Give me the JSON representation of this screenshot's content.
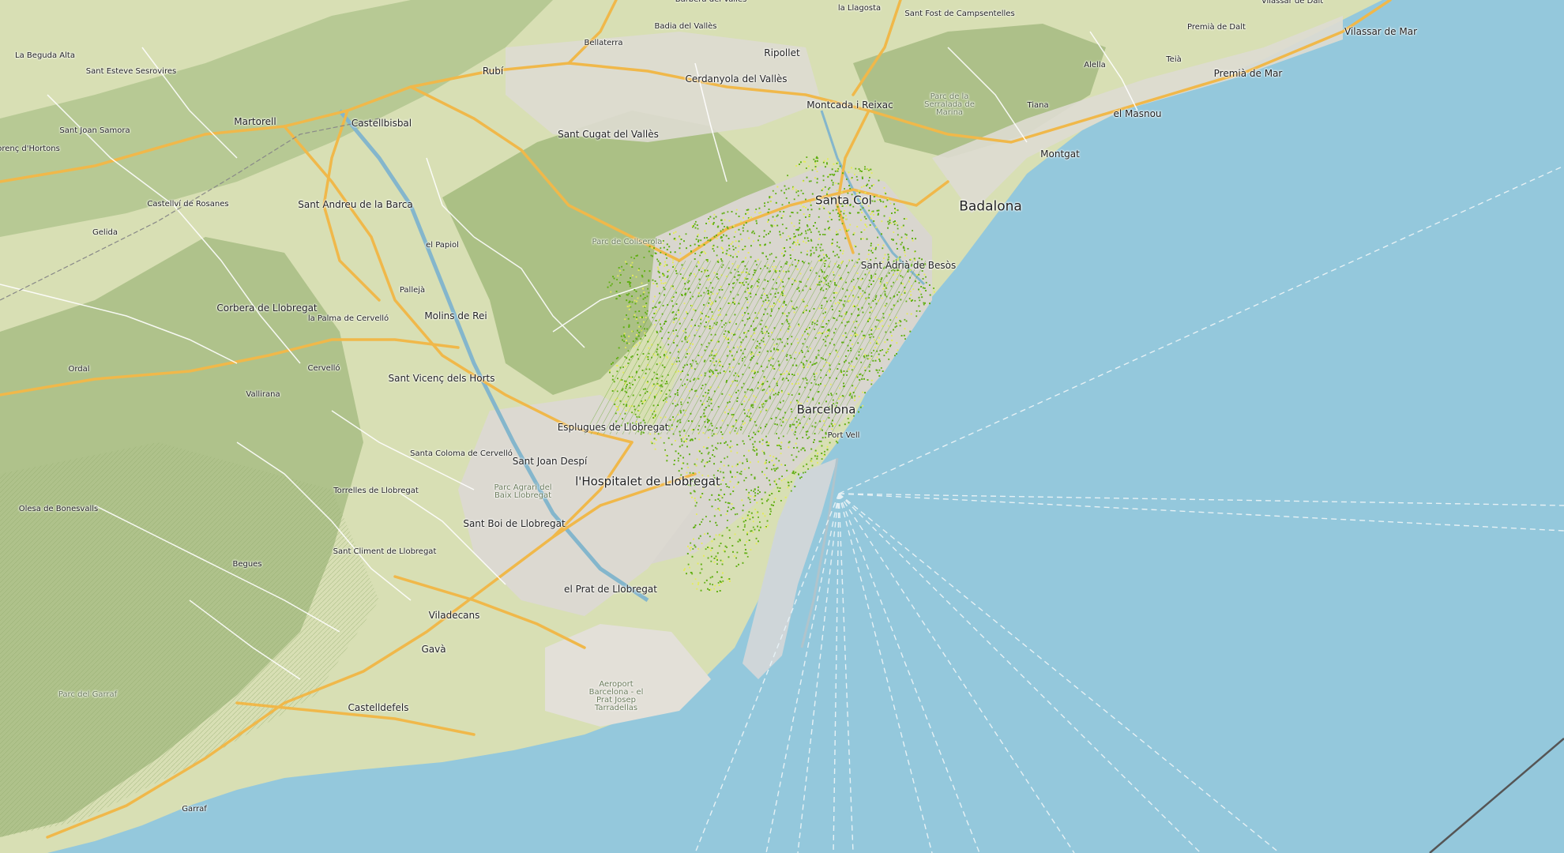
{
  "map": {
    "type": "topographic-transit-overlay",
    "colors": {
      "sea": "#94c8dc",
      "land": "#d8dfb4",
      "forest": "#a9bd84",
      "urban": "#d9d6cf",
      "highway": "#f0b84a",
      "road": "#ffffff",
      "transit_stops": "#5fae12",
      "transit_stops_alt": "#e4ec5a",
      "ferry_lines": "#e6f1f5",
      "coastline": "#5e8fa6"
    }
  },
  "places": [
    {
      "id": "barbera",
      "name": "Barberà del Vallès",
      "size": "s"
    },
    {
      "id": "llagosta",
      "name": "la Llagosta",
      "size": "s"
    },
    {
      "id": "sant-fost",
      "name": "Sant Fost de Campsentelles",
      "size": "s"
    },
    {
      "id": "vilassar-dalt",
      "name": "Vilassar de Dalt",
      "size": "s"
    },
    {
      "id": "badia",
      "name": "Badia del Vallès",
      "size": "s"
    },
    {
      "id": "premia-dalt",
      "name": "Premià de Dalt",
      "size": "s"
    },
    {
      "id": "vilassar-mar",
      "name": "Vilassar de Mar",
      "size": "m"
    },
    {
      "id": "beguda",
      "name": "La Beguda Alta",
      "size": "s"
    },
    {
      "id": "bellaterra",
      "name": "Bellaterra",
      "size": "s"
    },
    {
      "id": "ripollet",
      "name": "Ripollet",
      "size": "m"
    },
    {
      "id": "alella",
      "name": "Alella",
      "size": "s"
    },
    {
      "id": "teia",
      "name": "Teià",
      "size": "s"
    },
    {
      "id": "premia-mar",
      "name": "Premià de Mar",
      "size": "m"
    },
    {
      "id": "sant-esteve",
      "name": "Sant Esteve Sesrovires",
      "size": "s"
    },
    {
      "id": "rubi",
      "name": "Rubí",
      "size": "m"
    },
    {
      "id": "cerdanyola",
      "name": "Cerdanyola del Vallès",
      "size": "m"
    },
    {
      "id": "montcada",
      "name": "Montcada i Reixac",
      "size": "m"
    },
    {
      "id": "serralada",
      "name": "Parc de la Serralada de Marina",
      "size": "park"
    },
    {
      "id": "tiana",
      "name": "Tiana",
      "size": "s"
    },
    {
      "id": "masnou",
      "name": "el Masnou",
      "size": "m"
    },
    {
      "id": "martorell",
      "name": "Martorell",
      "size": "m"
    },
    {
      "id": "castellbisbal",
      "name": "Castellbisbal",
      "size": "m"
    },
    {
      "id": "sant-joan-samora",
      "name": "Sant Joan Samora",
      "size": "s"
    },
    {
      "id": "sant-cugat",
      "name": "Sant Cugat del Vallès",
      "size": "m"
    },
    {
      "id": "horts",
      "name": "orenç d'Hortons",
      "size": "s"
    },
    {
      "id": "montgat",
      "name": "Montgat",
      "size": "m"
    },
    {
      "id": "castellvi",
      "name": "Castellví de Rosanes",
      "size": "s"
    },
    {
      "id": "sant-andreu",
      "name": "Sant Andreu de la Barca",
      "size": "m"
    },
    {
      "id": "santa-coloma",
      "name": "Santa Col",
      "size": "l"
    },
    {
      "id": "badalona",
      "name": "Badalona",
      "size": "xl"
    },
    {
      "id": "gelida",
      "name": "Gelida",
      "size": "s"
    },
    {
      "id": "collserola",
      "name": "Parc de Collserola",
      "size": "park"
    },
    {
      "id": "papiol",
      "name": "el Papiol",
      "size": "s"
    },
    {
      "id": "sant-adria",
      "name": "Sant Adrià de Besòs",
      "size": "m"
    },
    {
      "id": "pallejà",
      "name": "Pallejà",
      "size": "s"
    },
    {
      "id": "corbera",
      "name": "Corbera de Llobregat",
      "size": "m"
    },
    {
      "id": "palma",
      "name": "la Palma de Cervelló",
      "size": "s"
    },
    {
      "id": "molins",
      "name": "Molins de Rei",
      "size": "m"
    },
    {
      "id": "ordal",
      "name": "Ordal",
      "size": "s"
    },
    {
      "id": "cervello",
      "name": "Cervelló",
      "size": "s"
    },
    {
      "id": "vicenc",
      "name": "Sant Vicenç dels Horts",
      "size": "m"
    },
    {
      "id": "vallirana",
      "name": "Vallirana",
      "size": "s"
    },
    {
      "id": "barcelona",
      "name": "Barcelona",
      "size": "l"
    },
    {
      "id": "esplugues",
      "name": "Esplugues de Llobregat",
      "size": "m"
    },
    {
      "id": "port-vell",
      "name": "Port Vell",
      "size": "s"
    },
    {
      "id": "santa-coloma-cervello",
      "name": "Santa Coloma de Cervelló",
      "size": "s"
    },
    {
      "id": "sant-joan-despi",
      "name": "Sant Joan Despí",
      "size": "m"
    },
    {
      "id": "hospitalet",
      "name": "l'Hospitalet de Llobregat",
      "size": "l"
    },
    {
      "id": "parc-agrari",
      "name": "Parc Agrari del Baix Llobregat",
      "size": "park"
    },
    {
      "id": "torrelles",
      "name": "Torrelles de Llobregat",
      "size": "s"
    },
    {
      "id": "olesa-bonesvalls",
      "name": "Olesa de Bonesvalls",
      "size": "s"
    },
    {
      "id": "sant-boi",
      "name": "Sant Boi de Llobregat",
      "size": "m"
    },
    {
      "id": "sant-climent",
      "name": "Sant Climent de Llobregat",
      "size": "s"
    },
    {
      "id": "begues",
      "name": "Begues",
      "size": "s"
    },
    {
      "id": "prat",
      "name": "el Prat de Llobregat",
      "size": "m"
    },
    {
      "id": "viladecans",
      "name": "Viladecans",
      "size": "m"
    },
    {
      "id": "gava",
      "name": "Gavà",
      "size": "m"
    },
    {
      "id": "aeroport",
      "name": "Aeroport Barcelona - el Prat Josep Tarradellas",
      "size": "park"
    },
    {
      "id": "garraf-park",
      "name": "Parc del Garraf",
      "size": "park"
    },
    {
      "id": "castelldefels",
      "name": "Castelldefels",
      "size": "m"
    },
    {
      "id": "garraf",
      "name": "Garraf",
      "size": "s"
    }
  ]
}
